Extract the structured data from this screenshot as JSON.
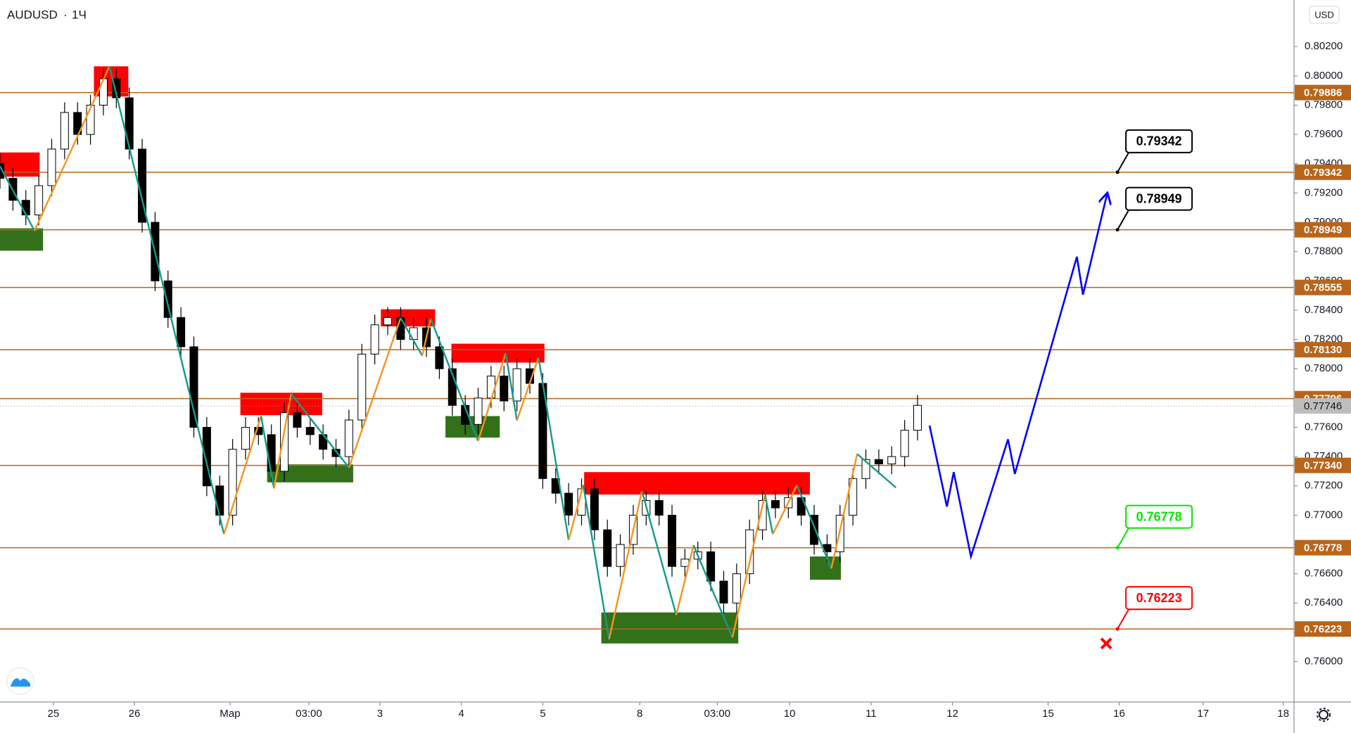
{
  "chart_data": {
    "type": "candlestick",
    "symbol": "AUDUSD",
    "interval": "1Ч",
    "currency": "USD",
    "up_color": "#ffffff",
    "down_color": "#000000",
    "wick_color": "#000000",
    "x": [
      0,
      1,
      2,
      3,
      4,
      5,
      6,
      7,
      8,
      9,
      10,
      11,
      12,
      13,
      14,
      15,
      16,
      17,
      18,
      19,
      20,
      21,
      22,
      23,
      24,
      25,
      26,
      27,
      28,
      29,
      30,
      31,
      32,
      33,
      34,
      35,
      36,
      37,
      38,
      39,
      40,
      41,
      42,
      43,
      44,
      45,
      46,
      47,
      48,
      49,
      50,
      51,
      52,
      53,
      54,
      55,
      56,
      57,
      58,
      59,
      60,
      61,
      62,
      63,
      64,
      65,
      66,
      67,
      68,
      69,
      70,
      71
    ],
    "open": [
      0.794,
      0.793,
      0.7915,
      0.7905,
      0.7925,
      0.795,
      0.7975,
      0.796,
      0.798,
      0.7998,
      0.7985,
      0.795,
      0.79,
      0.786,
      0.7835,
      0.7815,
      0.776,
      0.772,
      0.77,
      0.7745,
      0.776,
      0.7755,
      0.773,
      0.777,
      0.776,
      0.7755,
      0.7745,
      0.774,
      0.7765,
      0.781,
      0.783,
      0.7835,
      0.782,
      0.7828,
      0.7815,
      0.78,
      0.7775,
      0.7762,
      0.778,
      0.7795,
      0.7778,
      0.78,
      0.779,
      0.7725,
      0.7715,
      0.77,
      0.7718,
      0.769,
      0.7665,
      0.768,
      0.77,
      0.771,
      0.77,
      0.7665,
      0.767,
      0.7675,
      0.7655,
      0.764,
      0.766,
      0.769,
      0.771,
      0.7705,
      0.7712,
      0.77,
      0.768,
      0.7675,
      0.77,
      0.7725,
      0.7738,
      0.7735,
      0.774,
      0.7758
    ],
    "high": [
      0.7947,
      0.7937,
      0.7922,
      0.7932,
      0.7957,
      0.7982,
      0.7982,
      0.7987,
      0.8005,
      0.8005,
      0.7992,
      0.7957,
      0.7907,
      0.7867,
      0.7842,
      0.7822,
      0.7767,
      0.7727,
      0.7752,
      0.7767,
      0.7767,
      0.7762,
      0.7777,
      0.7777,
      0.7767,
      0.7762,
      0.7752,
      0.7772,
      0.7817,
      0.7837,
      0.7842,
      0.7842,
      0.7835,
      0.7835,
      0.7822,
      0.7807,
      0.7782,
      0.7787,
      0.7802,
      0.7802,
      0.7807,
      0.7807,
      0.7797,
      0.7732,
      0.7722,
      0.7725,
      0.7725,
      0.7697,
      0.7687,
      0.7707,
      0.7717,
      0.7717,
      0.7707,
      0.7677,
      0.7682,
      0.7682,
      0.7662,
      0.7667,
      0.7697,
      0.7717,
      0.7717,
      0.7719,
      0.7719,
      0.7707,
      0.7687,
      0.7707,
      0.7732,
      0.7745,
      0.7745,
      0.7747,
      0.7765,
      0.7782
    ],
    "low": [
      0.7923,
      0.7908,
      0.7898,
      0.7898,
      0.7918,
      0.7943,
      0.7953,
      0.7953,
      0.7973,
      0.7978,
      0.7943,
      0.7893,
      0.7853,
      0.7828,
      0.7808,
      0.7753,
      0.7713,
      0.7693,
      0.7693,
      0.7738,
      0.7748,
      0.7723,
      0.7723,
      0.7753,
      0.7748,
      0.7738,
      0.7733,
      0.7733,
      0.7758,
      0.7803,
      0.7823,
      0.7813,
      0.7813,
      0.7808,
      0.7793,
      0.7768,
      0.7755,
      0.7755,
      0.7773,
      0.7771,
      0.7771,
      0.7783,
      0.7718,
      0.7708,
      0.7693,
      0.7693,
      0.7683,
      0.7658,
      0.7658,
      0.7673,
      0.7693,
      0.7693,
      0.7658,
      0.7658,
      0.7663,
      0.7648,
      0.7633,
      0.7633,
      0.7653,
      0.7683,
      0.7698,
      0.7698,
      0.7693,
      0.7673,
      0.7668,
      0.7668,
      0.7693,
      0.7718,
      0.7728,
      0.7728,
      0.7733,
      0.7751
    ],
    "close": [
      0.793,
      0.7915,
      0.7905,
      0.7925,
      0.795,
      0.7975,
      0.796,
      0.798,
      0.7998,
      0.7985,
      0.795,
      0.79,
      0.786,
      0.7835,
      0.7815,
      0.776,
      0.772,
      0.77,
      0.7745,
      0.776,
      0.7755,
      0.773,
      0.777,
      0.776,
      0.7755,
      0.7745,
      0.774,
      0.7765,
      0.781,
      0.783,
      0.7835,
      0.782,
      0.7828,
      0.7815,
      0.78,
      0.7775,
      0.7762,
      0.778,
      0.7795,
      0.7778,
      0.78,
      0.779,
      0.7725,
      0.7715,
      0.77,
      0.7718,
      0.769,
      0.7665,
      0.768,
      0.77,
      0.771,
      0.77,
      0.7665,
      0.767,
      0.7675,
      0.7655,
      0.764,
      0.766,
      0.769,
      0.771,
      0.7705,
      0.7712,
      0.77,
      0.768,
      0.7675,
      0.77,
      0.7725,
      0.7738,
      0.7735,
      0.774,
      0.7758,
      0.7775
    ],
    "xlim": [
      0,
      100.13
    ],
    "xticks": [
      {
        "value": 4.13,
        "label": "25"
      },
      {
        "value": 10.4,
        "label": "26"
      },
      {
        "value": 17.8,
        "label": "Мар"
      },
      {
        "value": 23.9,
        "label": "03:00"
      },
      {
        "value": 29.4,
        "label": "3"
      },
      {
        "value": 35.7,
        "label": "4"
      },
      {
        "value": 42,
        "label": "5"
      },
      {
        "value": 49.5,
        "label": "8"
      },
      {
        "value": 55.5,
        "label": "03:00"
      },
      {
        "value": 61.1,
        "label": "10"
      },
      {
        "value": 67.4,
        "label": "11"
      },
      {
        "value": 73.7,
        "label": "12"
      },
      {
        "value": 81.1,
        "label": "15"
      },
      {
        "value": 86.6,
        "label": "16"
      },
      {
        "value": 93.1,
        "label": "17"
      },
      {
        "value": 99.3,
        "label": "18"
      }
    ],
    "ylim": [
      0.75724,
      0.80518
    ],
    "yticks": [
      {
        "value": 0.76,
        "label": "0.76000"
      },
      {
        "value": 0.762,
        "label": "0.76200"
      },
      {
        "value": 0.764,
        "label": "0.76400"
      },
      {
        "value": 0.766,
        "label": "0.76600"
      },
      {
        "value": 0.768,
        "label": "0.76800"
      },
      {
        "value": 0.77,
        "label": "0.77000"
      },
      {
        "value": 0.772,
        "label": "0.77200"
      },
      {
        "value": 0.774,
        "label": "0.77400"
      },
      {
        "value": 0.776,
        "label": "0.77600"
      },
      {
        "value": 0.778,
        "label": "0.77800"
      },
      {
        "value": 0.78,
        "label": "0.78000"
      },
      {
        "value": 0.782,
        "label": "0.78200"
      },
      {
        "value": 0.784,
        "label": "0.78400"
      },
      {
        "value": 0.786,
        "label": "0.78600"
      },
      {
        "value": 0.788,
        "label": "0.78800"
      },
      {
        "value": 0.79,
        "label": "0.79000"
      },
      {
        "value": 0.792,
        "label": "0.79200"
      },
      {
        "value": 0.794,
        "label": "0.79400"
      },
      {
        "value": 0.796,
        "label": "0.79600"
      },
      {
        "value": 0.798,
        "label": "0.79800"
      },
      {
        "value": 0.8,
        "label": "0.80000"
      },
      {
        "value": 0.802,
        "label": "0.80200"
      }
    ],
    "level_color": "#b8651b",
    "levels": [
      0.79886,
      0.79342,
      0.78949,
      0.78555,
      {
        "value": 0.7813,
        "label": "0.78130"
      },
      0.77796,
      {
        "value": 0.7734,
        "label": "0.77340"
      },
      0.76778,
      0.76223
    ],
    "last_price": {
      "value": 0.77746,
      "color": "#bdbdbd"
    },
    "zones": [
      {
        "color": "#ff0000",
        "x0": 0,
        "x1": 3.07,
        "y0": 0.79312,
        "y1": 0.79477
      },
      {
        "color": "#33701a",
        "x0": 0,
        "x1": 3.33,
        "y0": 0.78806,
        "y1": 0.78959
      },
      {
        "color": "#ff0000",
        "x0": 7.27,
        "x1": 9.93,
        "y0": 0.79859,
        "y1": 0.80065
      },
      {
        "color": "#ff0000",
        "x0": 18.6,
        "x1": 24.93,
        "y0": 0.77683,
        "y1": 0.77836
      },
      {
        "color": "#33701a",
        "x0": 20.67,
        "x1": 27.33,
        "y0": 0.77224,
        "y1": 0.77347
      },
      {
        "color": "#ff0000",
        "x0": 29.47,
        "x1": 33.67,
        "y0": 0.78289,
        "y1": 0.78406
      },
      {
        "color": "#ff0000",
        "x0": 34.93,
        "x1": 42.13,
        "y0": 0.78042,
        "y1": 0.78171
      },
      {
        "color": "#33701a",
        "x0": 34.47,
        "x1": 38.67,
        "y0": 0.7753,
        "y1": 0.77677
      },
      {
        "color": "#ff0000",
        "x0": 45.2,
        "x1": 62.67,
        "y0": 0.77141,
        "y1": 0.77294
      },
      {
        "color": "#33701a",
        "x0": 46.53,
        "x1": 57.13,
        "y0": 0.76124,
        "y1": 0.76336
      },
      {
        "color": "#33701a",
        "x0": 62.67,
        "x1": 65.07,
        "y0": 0.76559,
        "y1": 0.76718
      }
    ],
    "zigzag": {
      "up_color": "#f7931e",
      "down_color": "#139a8a",
      "x": [
        0,
        2.67,
        8.47,
        17.33,
        20.2,
        21.2,
        22.53,
        27,
        31,
        32.67,
        33.33,
        37,
        39.13,
        40,
        41.67,
        44,
        45.13,
        47.13,
        49.67,
        52.33,
        53.67,
        56.67,
        59.2,
        59.8,
        61.67,
        64.33,
        66.33,
        69.33
      ],
      "y": [
        0.79383,
        0.78942,
        0.80065,
        0.76871,
        0.77677,
        0.77183,
        0.7783,
        0.77324,
        0.78347,
        0.78089,
        0.78342,
        0.77506,
        0.78106,
        0.77647,
        0.78077,
        0.7683,
        0.77206,
        0.76153,
        0.77165,
        0.76318,
        0.76794,
        0.76165,
        0.77141,
        0.76871,
        0.77206,
        0.76636,
        0.77418,
        0.77188
      ]
    },
    "projection": {
      "color": "#0000ff",
      "x": [
        71.93,
        73.27,
        73.8,
        75.13,
        78,
        78.53,
        83.33,
        83.8,
        85.67
      ],
      "y": [
        0.77612,
        0.77059,
        0.77294,
        0.76718,
        0.77518,
        0.77282,
        0.78765,
        0.78506,
        0.79194
      ]
    },
    "callouts": [
      {
        "value": 0.79342,
        "x": 86.47,
        "color": "#000000"
      },
      {
        "value": 0.78949,
        "x": 86.47,
        "color": "#000000"
      },
      {
        "value": 0.76778,
        "x": 86.47,
        "color": "#00e600"
      },
      {
        "value": 0.76223,
        "x": 86.47,
        "color": "#ff0000"
      }
    ],
    "cross": {
      "x": 85.6,
      "y": 0.76124,
      "color": "#ff0000"
    }
  }
}
